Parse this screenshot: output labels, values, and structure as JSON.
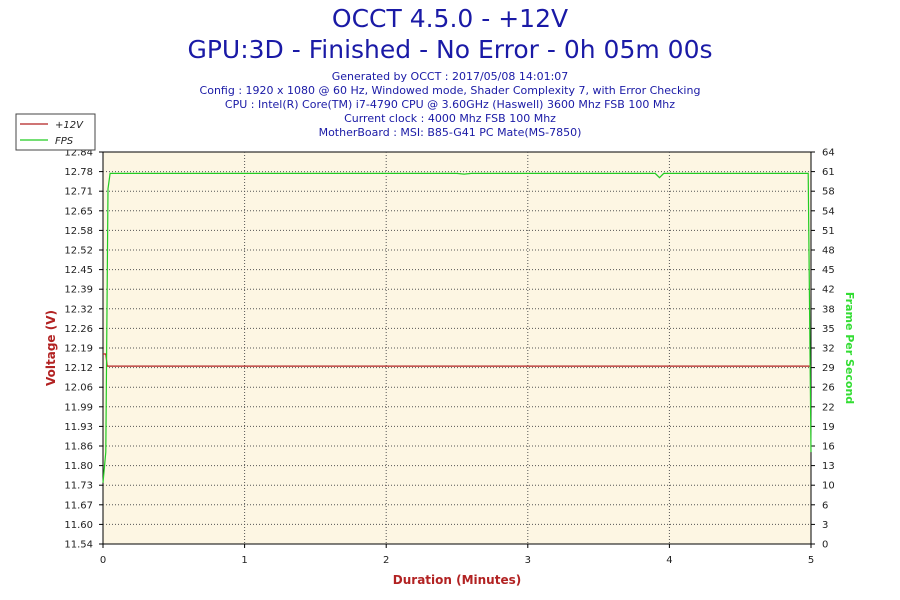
{
  "header": {
    "title": "OCCT 4.5.0 - +12V",
    "subtitle": "GPU:3D - Finished - No Error - 0h 05m 00s",
    "info_lines": [
      "Generated by OCCT : 2017/05/08 14:01:07",
      "Config : 1920 x 1080 @ 60 Hz, Windowed mode, Shader Complexity 7, with Error Checking",
      "CPU : Intel(R) Core(TM) i7-4790 CPU @ 3.60GHz (Haswell) 3600 Mhz FSB 100 Mhz",
      "Current clock : 4000 Mhz FSB 100 Mhz",
      "MotherBoard : MSI: B85-G41 PC Mate(MS-7850)"
    ]
  },
  "colors": {
    "voltage": "#b22222",
    "fps": "#22cc22",
    "plot_bg": "#fdf6e3",
    "title": "#1a1aa6",
    "axis_label": "#b22222",
    "fps_label": "#33dd33"
  },
  "chart_data": {
    "type": "line",
    "xlabel": "Duration (Minutes)",
    "ylabel_left": "Voltage (V)",
    "ylabel_right": "Frame Per Second",
    "xlim": [
      0,
      5
    ],
    "ylim_left": [
      11.54,
      12.84
    ],
    "ylim_right": [
      0,
      64
    ],
    "x_ticks": [
      "0",
      "1",
      "2",
      "3",
      "4",
      "5"
    ],
    "y_ticks_left": [
      "11.54",
      "11.60",
      "11.67",
      "11.73",
      "11.80",
      "11.86",
      "11.93",
      "11.99",
      "12.06",
      "12.12",
      "12.19",
      "12.26",
      "12.32",
      "12.39",
      "12.45",
      "12.52",
      "12.58",
      "12.65",
      "12.71",
      "12.78",
      "12.84"
    ],
    "y_ticks_right": [
      "0",
      "3",
      "6",
      "10",
      "13",
      "16",
      "19",
      "22",
      "26",
      "29",
      "32",
      "35",
      "38",
      "42",
      "45",
      "48",
      "51",
      "54",
      "58",
      "61",
      "64"
    ],
    "grid": true,
    "legend_position": "top-left",
    "series": [
      {
        "name": "+12V",
        "axis": "left",
        "x": [
          0,
          0.02,
          0.03,
          1,
          2,
          3,
          4,
          5
        ],
        "y": [
          12.17,
          12.17,
          12.13,
          12.13,
          12.13,
          12.13,
          12.13,
          12.13
        ]
      },
      {
        "name": "FPS",
        "axis": "right",
        "x": [
          0,
          0.02,
          0.035,
          0.05,
          0.1,
          1,
          2,
          2.5,
          2.55,
          2.6,
          3.9,
          3.93,
          3.96,
          4.0,
          4.5,
          4.98,
          5.0
        ],
        "y": [
          10,
          15,
          58,
          60.5,
          60.5,
          60.5,
          60.5,
          60.5,
          60.4,
          60.5,
          60.5,
          59.8,
          60.5,
          60.5,
          60.5,
          60.5,
          15
        ]
      }
    ]
  }
}
